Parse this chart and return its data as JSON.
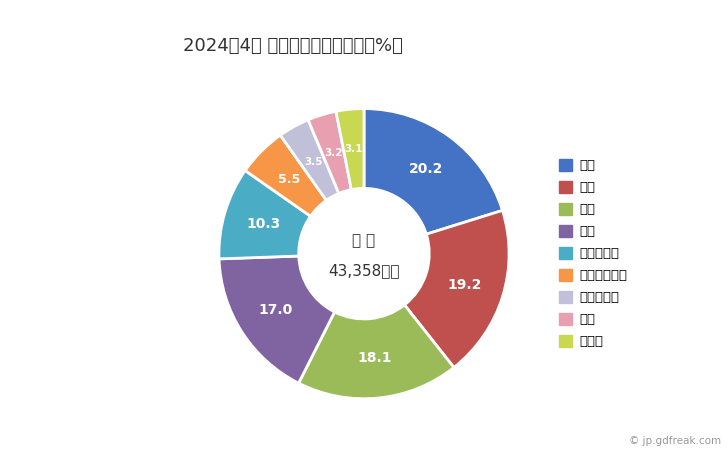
{
  "title": "2024年4月 輸出相手国のシェア（%）",
  "center_line1": "総 額",
  "center_line2": "43,358万円",
  "legend_labels": [
    "韓国",
    "タイ",
    "台湾",
    "中国",
    "マレーシア",
    "インドネシア",
    "フィリピン",
    "香港",
    "その他"
  ],
  "values": [
    20.2,
    19.2,
    18.1,
    17.0,
    10.3,
    5.5,
    3.5,
    3.2,
    3.1
  ],
  "slice_labels": [
    "20.2",
    "19.2",
    "18.1",
    "17.0",
    "10.3",
    "5.5",
    "3.5",
    "3.2",
    "3.1"
  ],
  "colors": [
    "#4472c4",
    "#c0504d",
    "#9bbb59",
    "#8064a2",
    "#4bacc6",
    "#f79646",
    "#c0c0d8",
    "#e8a0b0",
    "#c8d850"
  ],
  "background_color": "#ffffff",
  "watermark": "© jp.gdfreak.com"
}
